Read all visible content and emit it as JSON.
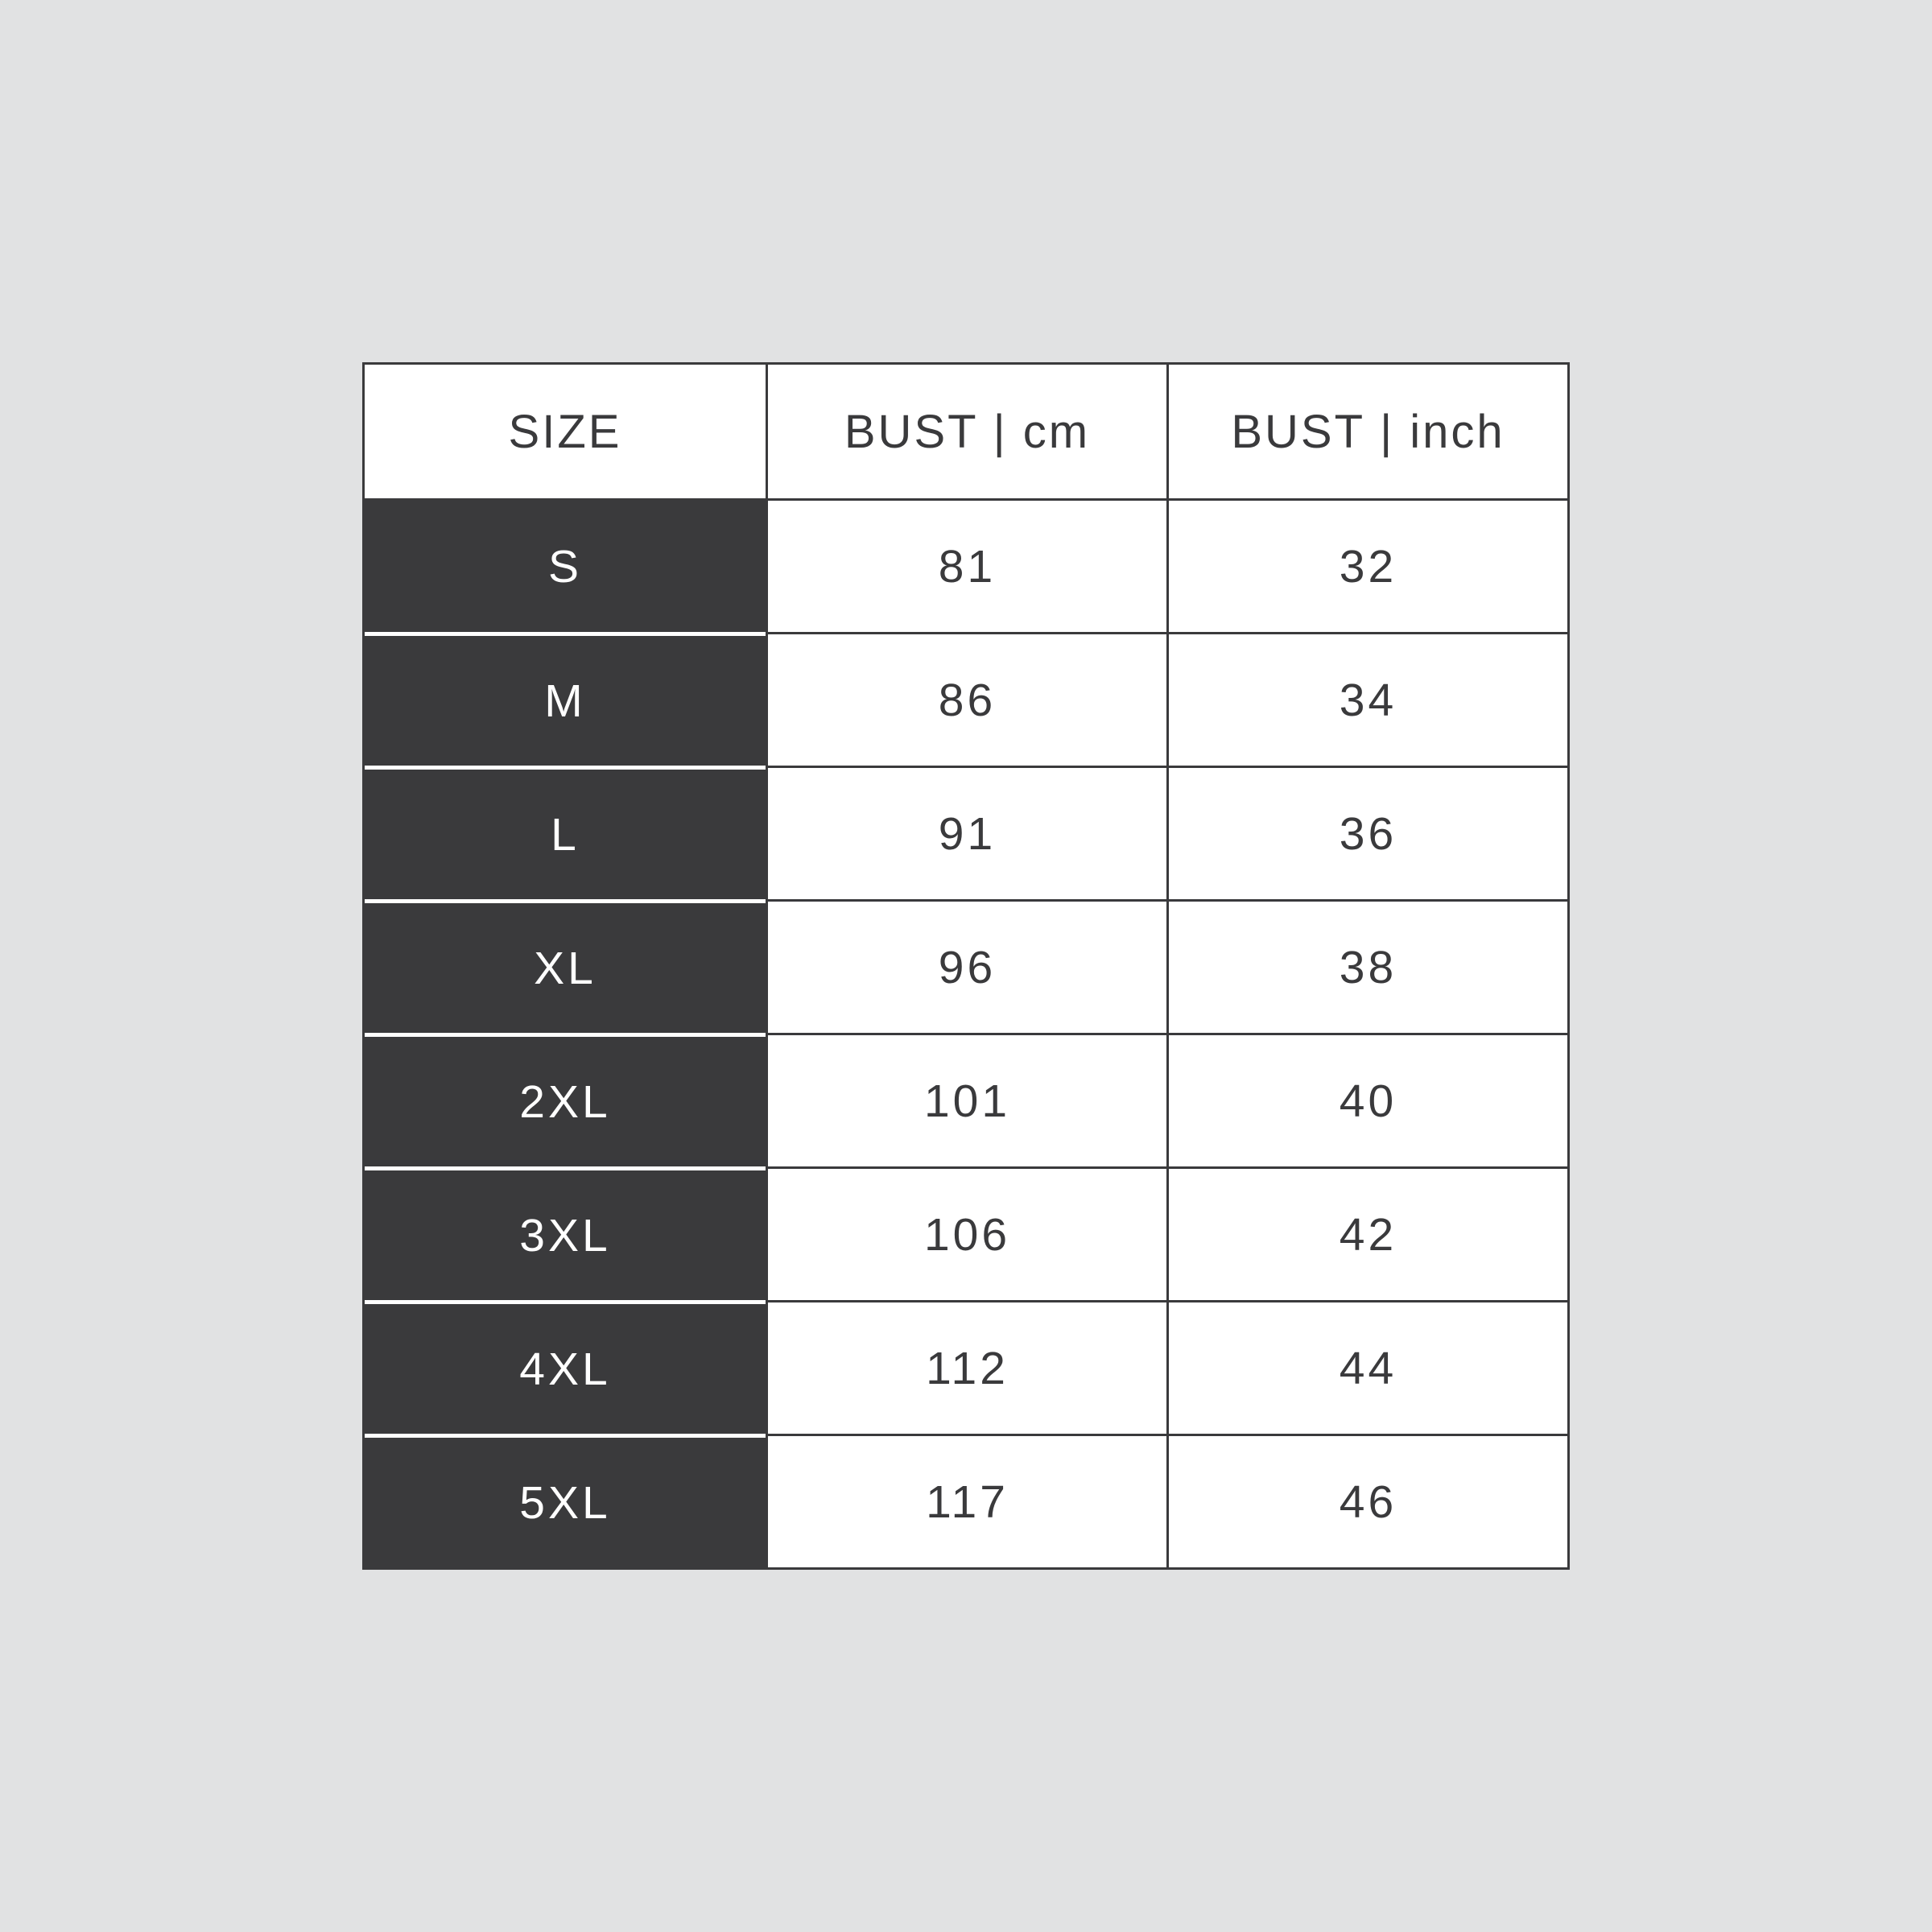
{
  "style": {
    "page_background": "#e1e2e3",
    "grid_dark": "#3a3a3c",
    "cell_white": "#ffffff",
    "separator_white": "#ffffff",
    "size_label_text_white": "#ffffff",
    "text_dark": "#3a3a3c"
  },
  "chart_data": {
    "type": "table",
    "columns": [
      "SIZE",
      "BUST | cm",
      "BUST | inch"
    ],
    "rows": [
      [
        "S",
        "81",
        "32"
      ],
      [
        "M",
        "86",
        "34"
      ],
      [
        "L",
        "91",
        "36"
      ],
      [
        "XL",
        "96",
        "38"
      ],
      [
        "2XL",
        "101",
        "40"
      ],
      [
        "3XL",
        "106",
        "42"
      ],
      [
        "4XL",
        "112",
        "44"
      ],
      [
        "5XL",
        "117",
        "46"
      ]
    ],
    "layout": {
      "grid": true,
      "header_background": "#ffffff",
      "size_column_background": "#3a3a3c",
      "size_column_text": "#ffffff",
      "value_cell_background": "#ffffff"
    }
  }
}
